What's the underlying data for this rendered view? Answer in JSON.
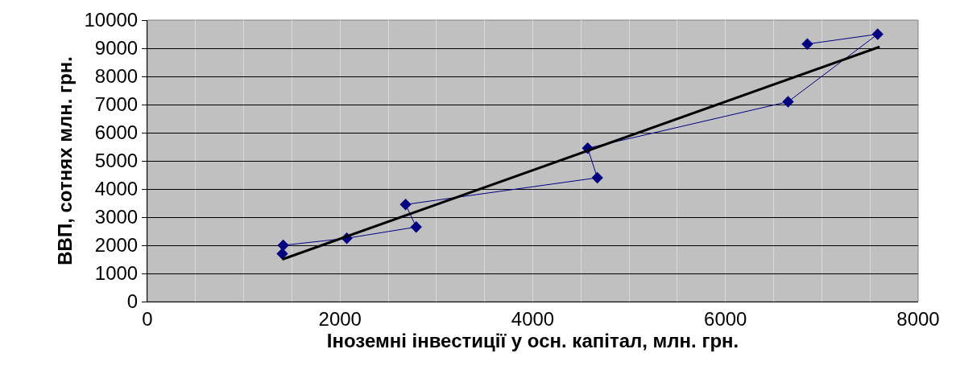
{
  "chart_data": {
    "type": "line",
    "xlabel": "Іноземні інвестиції у осн. капітал, млн. грн.",
    "ylabel": "ВВП, сотнях млн. грн.",
    "xlim": [
      0,
      8000
    ],
    "xticks": [
      0,
      {
        "value": 500,
        "label": null
      },
      {
        "value": 1000,
        "label": null
      },
      {
        "value": 1500,
        "label": null
      },
      2000,
      {
        "value": 2500,
        "label": null
      },
      {
        "value": 3000,
        "label": null
      },
      {
        "value": 3500,
        "label": null
      },
      4000,
      {
        "value": 4500,
        "label": null
      },
      {
        "value": 5000,
        "label": null
      },
      {
        "value": 5500,
        "label": null
      },
      6000,
      {
        "value": 6500,
        "label": null
      },
      {
        "value": 7000,
        "label": null
      },
      {
        "value": 7500,
        "label": null
      },
      8000
    ],
    "ylim": [
      0,
      10000
    ],
    "yticks": [
      0,
      1000,
      2000,
      3000,
      4000,
      5000,
      6000,
      7000,
      8000,
      9000,
      10000
    ],
    "grid": true,
    "series": [
      {
        "color": "#000080",
        "marker": "diamond",
        "x": [
          1400,
          1410,
          2070,
          2790,
          2680,
          4670,
          4570,
          6650,
          7580,
          6850
        ],
        "values": [
          1700,
          2000,
          2250,
          2650,
          3450,
          4400,
          5450,
          7100,
          9500,
          9150
        ]
      },
      {
        "type": "line",
        "color": "#000000",
        "marker": "none",
        "x": [
          1400,
          7600
        ],
        "values": [
          1500,
          9050
        ]
      }
    ]
  }
}
